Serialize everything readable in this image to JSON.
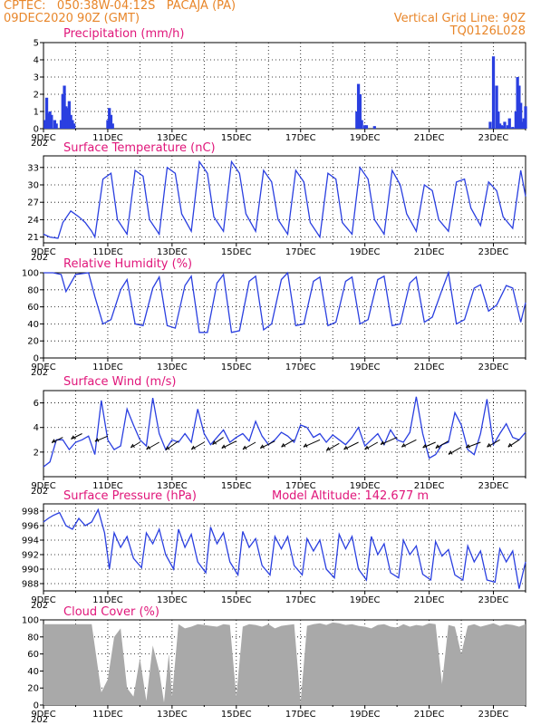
{
  "header": {
    "line1": "CPTEC:   050:38W-04:12S   PACAJA (PA)",
    "line2": "09DEC2020 90Z (GMT)",
    "right1": "Vertical Grid Line: 90Z",
    "right2": "TQ0126L028"
  },
  "colors": {
    "series": "#2a3fe0",
    "accent": "#e0167a",
    "header": "#e8862a",
    "cloud": "#a9a9a9"
  },
  "x_dates": [
    "9DEC",
    "11DEC",
    "13DEC",
    "15DEC",
    "17DEC",
    "19DEC",
    "21DEC",
    "23DEC"
  ],
  "x_stub": "202",
  "chart_data": [
    {
      "id": "precip",
      "type": "bar",
      "title": "Precipitation (mm/h)",
      "ylim": [
        0,
        5
      ],
      "yticks": [
        0,
        1,
        2,
        3,
        4,
        5
      ],
      "x_days_range": [
        0,
        15
      ],
      "days": [
        0.05,
        0.1,
        0.15,
        0.2,
        0.25,
        0.35,
        0.4,
        0.55,
        0.6,
        0.65,
        0.7,
        0.75,
        0.8,
        0.85,
        0.9,
        0.95,
        2.0,
        2.05,
        2.1,
        2.15,
        9.75,
        9.8,
        9.85,
        9.9,
        10.0,
        10.05,
        10.3,
        13.9,
        14.0,
        14.1,
        14.15,
        14.2,
        14.25,
        14.3,
        14.35,
        14.45,
        14.5,
        14.6,
        14.7,
        14.75,
        14.8,
        14.85,
        14.9,
        14.95,
        15.0
      ],
      "values": [
        0.5,
        1.8,
        0.9,
        1.0,
        0.8,
        0.5,
        0.3,
        0.5,
        2.0,
        2.5,
        1.3,
        1.2,
        1.6,
        0.8,
        0.5,
        0.3,
        0.5,
        1.2,
        0.8,
        0.3,
        1.0,
        2.6,
        2.0,
        0.5,
        0.2,
        0.2,
        0.15,
        0.4,
        4.2,
        2.5,
        1.0,
        0.3,
        0.2,
        0.15,
        0.4,
        0.2,
        0.6,
        0.1,
        1.0,
        3.0,
        2.5,
        1.5,
        0.4,
        0.6,
        1.3
      ]
    },
    {
      "id": "temp",
      "type": "line",
      "title": "Surface Temperature (nC)",
      "ylim": [
        20,
        35
      ],
      "yticks": [
        21,
        24,
        27,
        30,
        33
      ],
      "x_days_range": [
        0,
        15
      ],
      "x": [
        0,
        0.2,
        0.45,
        0.6,
        0.85,
        1.1,
        1.3,
        1.5,
        1.6,
        1.85,
        2.1,
        2.3,
        2.6,
        2.85,
        3.1,
        3.3,
        3.6,
        3.85,
        4.1,
        4.3,
        4.6,
        4.85,
        5.1,
        5.3,
        5.6,
        5.85,
        6.1,
        6.3,
        6.6,
        6.85,
        7.1,
        7.3,
        7.6,
        7.85,
        8.1,
        8.3,
        8.6,
        8.85,
        9.1,
        9.3,
        9.6,
        9.85,
        10.1,
        10.3,
        10.6,
        10.85,
        11.1,
        11.3,
        11.6,
        11.85,
        12.1,
        12.3,
        12.6,
        12.85,
        13.1,
        13.3,
        13.6,
        13.85,
        14.1,
        14.3,
        14.6,
        14.85,
        15.0
      ],
      "y": [
        21.5,
        21.0,
        20.8,
        23.5,
        25.5,
        24.5,
        23.5,
        22.0,
        21.0,
        31.0,
        32.0,
        24.0,
        21.5,
        32.5,
        31.5,
        24.0,
        21.5,
        33.0,
        32.0,
        25.0,
        22.0,
        34.0,
        32.0,
        24.5,
        22.0,
        34.0,
        32.0,
        25.0,
        22.0,
        32.5,
        30.5,
        24.0,
        21.5,
        32.5,
        30.5,
        23.5,
        21.0,
        32.0,
        31.0,
        23.5,
        21.5,
        33.0,
        31.0,
        24.0,
        21.5,
        32.5,
        30.0,
        25.0,
        22.0,
        30.0,
        29.0,
        24.0,
        22.0,
        30.5,
        31.0,
        26.0,
        23.0,
        30.5,
        29.0,
        24.5,
        22.5,
        32.5,
        28.0
      ]
    },
    {
      "id": "rh",
      "type": "line",
      "title": "Relative Humidity (%)",
      "ylim": [
        0,
        100
      ],
      "yticks": [
        0,
        20,
        40,
        60,
        80,
        100
      ],
      "x_days_range": [
        0,
        15
      ],
      "x": [
        0,
        0.3,
        0.55,
        0.7,
        1.0,
        1.4,
        1.6,
        1.85,
        2.1,
        2.4,
        2.6,
        2.85,
        3.1,
        3.4,
        3.6,
        3.85,
        4.1,
        4.4,
        4.6,
        4.85,
        5.1,
        5.4,
        5.6,
        5.85,
        6.1,
        6.4,
        6.6,
        6.85,
        7.1,
        7.4,
        7.6,
        7.85,
        8.1,
        8.4,
        8.6,
        8.85,
        9.1,
        9.4,
        9.6,
        9.85,
        10.1,
        10.4,
        10.6,
        10.85,
        11.1,
        11.4,
        11.6,
        11.85,
        12.1,
        12.4,
        12.6,
        12.85,
        13.1,
        13.4,
        13.6,
        13.85,
        14.1,
        14.4,
        14.6,
        14.85,
        15.0
      ],
      "y": [
        100,
        100,
        98,
        78,
        98,
        100,
        72,
        40,
        45,
        80,
        92,
        40,
        38,
        82,
        95,
        38,
        35,
        85,
        96,
        30,
        30,
        88,
        98,
        30,
        32,
        90,
        96,
        33,
        40,
        92,
        100,
        38,
        40,
        90,
        95,
        38,
        42,
        90,
        95,
        40,
        45,
        92,
        96,
        38,
        40,
        88,
        95,
        42,
        48,
        80,
        100,
        40,
        45,
        82,
        86,
        55,
        62,
        85,
        82,
        42,
        65
      ]
    },
    {
      "id": "wind",
      "type": "line",
      "title": "Surface Wind (m/s)",
      "ylim": [
        0,
        7
      ],
      "yticks": [
        2,
        4,
        6
      ],
      "x_days_range": [
        0,
        15
      ],
      "x": [
        0,
        0.2,
        0.4,
        0.6,
        0.8,
        1.0,
        1.2,
        1.4,
        1.6,
        1.8,
        2.0,
        2.2,
        2.4,
        2.6,
        2.8,
        3.0,
        3.2,
        3.4,
        3.6,
        3.8,
        4.0,
        4.2,
        4.4,
        4.6,
        4.8,
        5.0,
        5.2,
        5.4,
        5.6,
        5.8,
        6.0,
        6.2,
        6.4,
        6.6,
        6.8,
        7.0,
        7.2,
        7.4,
        7.6,
        7.8,
        8.0,
        8.2,
        8.4,
        8.6,
        8.8,
        9.0,
        9.2,
        9.4,
        9.6,
        9.8,
        10.0,
        10.2,
        10.4,
        10.6,
        10.8,
        11.0,
        11.2,
        11.4,
        11.6,
        11.8,
        12.0,
        12.2,
        12.4,
        12.6,
        12.8,
        13.0,
        13.2,
        13.4,
        13.6,
        13.8,
        14.0,
        14.2,
        14.4,
        14.6,
        14.8,
        15.0
      ],
      "y": [
        0.8,
        1.2,
        3.0,
        3.0,
        2.2,
        2.8,
        3.0,
        3.3,
        1.8,
        6.2,
        3.0,
        2.2,
        2.5,
        5.5,
        4.2,
        3.0,
        2.5,
        6.4,
        3.5,
        2.2,
        3.0,
        2.8,
        3.5,
        2.8,
        5.5,
        3.5,
        2.6,
        3.2,
        3.8,
        2.8,
        3.2,
        3.5,
        2.9,
        4.5,
        3.3,
        2.6,
        3.0,
        3.6,
        3.3,
        2.8,
        4.2,
        4.0,
        3.2,
        3.5,
        2.8,
        3.4,
        3.0,
        2.6,
        3.2,
        4.0,
        2.5,
        3.0,
        3.5,
        2.6,
        3.8,
        3.0,
        2.8,
        3.6,
        6.5,
        3.5,
        1.5,
        1.8,
        2.6,
        2.8,
        5.2,
        4.2,
        2.2,
        1.8,
        3.5,
        6.3,
        2.6,
        3.5,
        4.3,
        3.2,
        3.0,
        3.6
      ],
      "arrows_x": [
        0.6,
        1.2,
        2.0,
        3.0,
        3.6,
        4.2,
        5.0,
        5.6,
        6.0,
        6.6,
        7.2,
        7.8,
        8.6,
        9.2,
        9.8,
        10.4,
        11.0,
        11.6,
        12.2,
        12.6,
        13.0,
        13.6,
        14.2,
        14.8
      ],
      "arrows_y": [
        3.2,
        3.5,
        3.3,
        2.8,
        2.8,
        2.9,
        2.8,
        3.2,
        2.9,
        2.8,
        2.9,
        3.0,
        3.0,
        2.7,
        2.8,
        2.8,
        3.2,
        3.0,
        2.8,
        2.9,
        2.4,
        2.8,
        3.0,
        3.0
      ],
      "arrows_dx": [
        -12,
        -12,
        -14,
        -10,
        -14,
        -14,
        -14,
        -12,
        -16,
        -14,
        -16,
        -14,
        -18,
        -14,
        -16,
        -14,
        -18,
        -16,
        -14,
        -14,
        -14,
        -16,
        -14,
        -12
      ],
      "arrows_dy": [
        6,
        6,
        6,
        6,
        8,
        10,
        8,
        8,
        8,
        8,
        8,
        8,
        8,
        8,
        8,
        8,
        8,
        8,
        6,
        8,
        8,
        6,
        8,
        8
      ]
    },
    {
      "id": "pressure",
      "type": "line",
      "title": "Surface Pressure (hPa)",
      "annotation": "Model Altitude: 142.677 m",
      "ylim": [
        987,
        999
      ],
      "yticks": [
        988,
        990,
        992,
        994,
        996,
        998
      ],
      "x_days_range": [
        0,
        15
      ],
      "x": [
        0,
        0.15,
        0.3,
        0.5,
        0.7,
        0.9,
        1.1,
        1.3,
        1.5,
        1.7,
        1.9,
        2.05,
        2.2,
        2.4,
        2.6,
        2.8,
        3.05,
        3.2,
        3.4,
        3.6,
        3.8,
        4.05,
        4.2,
        4.4,
        4.6,
        4.8,
        5.05,
        5.2,
        5.4,
        5.6,
        5.8,
        6.05,
        6.2,
        6.4,
        6.6,
        6.8,
        7.05,
        7.2,
        7.4,
        7.6,
        7.8,
        8.05,
        8.2,
        8.4,
        8.6,
        8.8,
        9.05,
        9.2,
        9.4,
        9.6,
        9.8,
        10.05,
        10.2,
        10.4,
        10.6,
        10.8,
        11.05,
        11.2,
        11.4,
        11.6,
        11.8,
        12.05,
        12.2,
        12.4,
        12.6,
        12.8,
        13.05,
        13.2,
        13.4,
        13.6,
        13.8,
        14.05,
        14.2,
        14.4,
        14.6,
        14.8,
        15.0
      ],
      "y": [
        996.5,
        997.0,
        997.4,
        997.8,
        996.0,
        995.5,
        997.0,
        996.0,
        996.5,
        998.2,
        995.0,
        990.0,
        995.0,
        993.0,
        994.5,
        991.5,
        990.2,
        995.0,
        993.5,
        995.5,
        992.0,
        990.0,
        995.5,
        993.0,
        994.8,
        991.0,
        989.5,
        995.8,
        993.5,
        995.0,
        991.0,
        989.2,
        995.2,
        993.0,
        994.2,
        990.5,
        989.2,
        994.5,
        992.8,
        994.5,
        990.5,
        989.2,
        994.2,
        992.5,
        994.0,
        990.0,
        988.8,
        994.8,
        992.8,
        994.5,
        990.0,
        988.5,
        994.5,
        992.0,
        993.5,
        989.5,
        988.8,
        994.0,
        992.0,
        993.2,
        989.3,
        988.5,
        993.8,
        991.8,
        992.7,
        989.2,
        988.5,
        993.2,
        991.0,
        992.5,
        988.5,
        988.2,
        992.8,
        991.0,
        992.5,
        987.3,
        991.0
      ]
    },
    {
      "id": "cloud",
      "type": "area",
      "title": "Cloud Cover (%)",
      "ylim": [
        0,
        100
      ],
      "yticks": [
        0,
        20,
        40,
        60,
        80,
        100
      ],
      "x_days_range": [
        0,
        15
      ],
      "x": [
        0,
        1.5,
        1.8,
        2.0,
        2.2,
        2.4,
        2.6,
        2.8,
        3.0,
        3.2,
        3.4,
        3.6,
        3.75,
        3.9,
        4.0,
        4.2,
        4.4,
        4.6,
        4.8,
        5.0,
        5.2,
        5.4,
        5.6,
        5.8,
        6.0,
        6.2,
        6.4,
        6.6,
        6.8,
        7.0,
        7.2,
        7.4,
        7.6,
        7.8,
        8.0,
        8.2,
        8.4,
        8.6,
        8.8,
        9.0,
        9.2,
        9.4,
        9.6,
        9.8,
        10.0,
        10.2,
        10.4,
        10.6,
        10.8,
        11.0,
        11.2,
        11.4,
        11.6,
        11.8,
        12.0,
        12.2,
        12.4,
        12.6,
        12.8,
        13.0,
        13.2,
        13.4,
        13.6,
        13.8,
        14.0,
        14.2,
        14.4,
        14.6,
        14.8,
        15.0
      ],
      "y": [
        95,
        95,
        15,
        30,
        80,
        90,
        20,
        10,
        55,
        5,
        70,
        40,
        3,
        60,
        10,
        95,
        90,
        92,
        95,
        94,
        93,
        92,
        95,
        94,
        10,
        92,
        95,
        94,
        92,
        95,
        90,
        93,
        94,
        95,
        3,
        93,
        95,
        96,
        94,
        97,
        96,
        94,
        95,
        93,
        92,
        90,
        94,
        95,
        92,
        91,
        95,
        92,
        94,
        93,
        96,
        95,
        25,
        94,
        92,
        60,
        93,
        95,
        92,
        94,
        96,
        93,
        95,
        94,
        92,
        95
      ]
    }
  ]
}
